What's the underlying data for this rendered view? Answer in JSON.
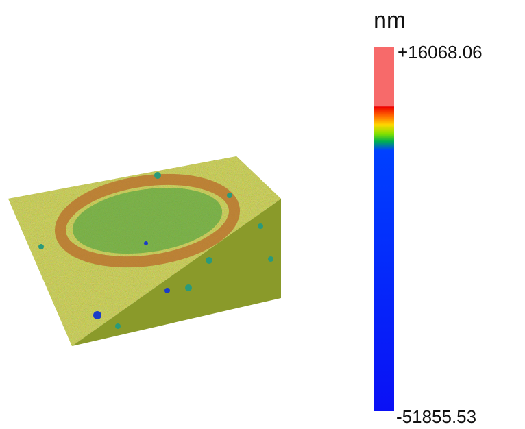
{
  "colorbar": {
    "unit": "nm",
    "max_label": "+16068.06",
    "min_label": "-51855.53"
  }
}
